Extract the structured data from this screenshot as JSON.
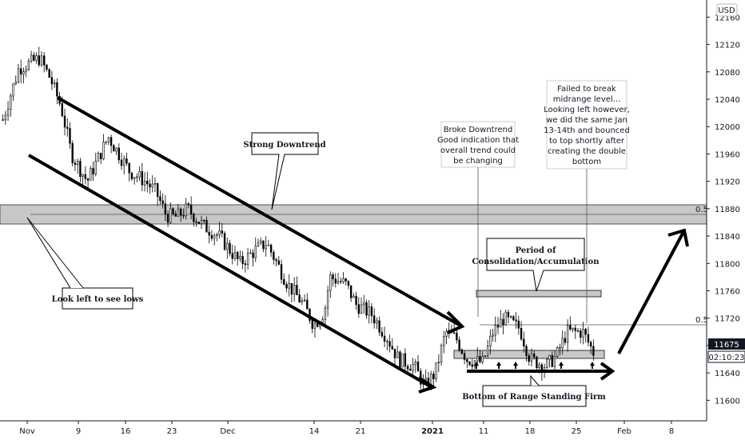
{
  "chart_data": {
    "type": "candlestick",
    "currency": "USD",
    "y_axis_ticks": [
      "11600",
      "11640",
      "11680",
      "11720",
      "11760",
      "11800",
      "11840",
      "11880",
      "11920",
      "11960",
      "12000",
      "12040",
      "12080",
      "12120",
      "12160"
    ],
    "ylim": [
      11570,
      12185
    ],
    "x_axis_ticks": [
      "Nov",
      "9",
      "16",
      "23",
      "Dec",
      "14",
      "21",
      "2021",
      "11",
      "18",
      "25",
      "Feb",
      "8"
    ],
    "x_tick_bold": [
      "2021"
    ],
    "last_price": "11675",
    "countdown": "02:10:23",
    "fib_level_label": "0.5",
    "annotations": {
      "strong_downtrend": "Strong Downtrend",
      "look_left": "Look left to see lows",
      "period_line1": "Period of",
      "period_line2": "Consolidation/Accumulation",
      "bottom_range": "Bottom of Range Standing Firm",
      "broke_lines": [
        "Broke Downtrend",
        "Good indication that",
        "overall trend could",
        "be changing"
      ],
      "failed_lines": [
        "Failed to break",
        "midrange level...",
        "Looking left however,",
        "we did the same Jan",
        "13-14th and bounced",
        "to top shortly after",
        "creating the double",
        "bottom"
      ]
    },
    "price_path_key": [
      [
        0,
        12010
      ],
      [
        3,
        12085
      ],
      [
        7,
        12100
      ],
      [
        9,
        12070
      ],
      [
        11,
        12030
      ],
      [
        13,
        11960
      ],
      [
        16,
        11920
      ],
      [
        20,
        11985
      ],
      [
        22,
        11960
      ],
      [
        24,
        11935
      ],
      [
        27,
        11920
      ],
      [
        29,
        11905
      ],
      [
        31,
        11870
      ],
      [
        33,
        11868
      ],
      [
        35,
        11880
      ],
      [
        38,
        11855
      ],
      [
        41,
        11840
      ],
      [
        43,
        11820
      ],
      [
        45,
        11800
      ],
      [
        48,
        11820
      ],
      [
        50,
        11830
      ],
      [
        52,
        11800
      ],
      [
        54,
        11770
      ],
      [
        57,
        11740
      ],
      [
        59,
        11710
      ],
      [
        61,
        11730
      ],
      [
        62,
        11780
      ],
      [
        65,
        11770
      ],
      [
        67,
        11740
      ],
      [
        70,
        11725
      ],
      [
        73,
        11690
      ],
      [
        75,
        11660
      ],
      [
        78,
        11650
      ],
      [
        80,
        11620
      ],
      [
        82,
        11640
      ],
      [
        84,
        11700
      ],
      [
        86,
        11690
      ],
      [
        88,
        11660
      ],
      [
        91,
        11655
      ],
      [
        93,
        11700
      ],
      [
        95,
        11720
      ],
      [
        98,
        11705
      ],
      [
        100,
        11660
      ],
      [
        103,
        11650
      ],
      [
        105,
        11665
      ],
      [
        107,
        11700
      ],
      [
        110,
        11700
      ],
      [
        112,
        11670
      ]
    ]
  }
}
